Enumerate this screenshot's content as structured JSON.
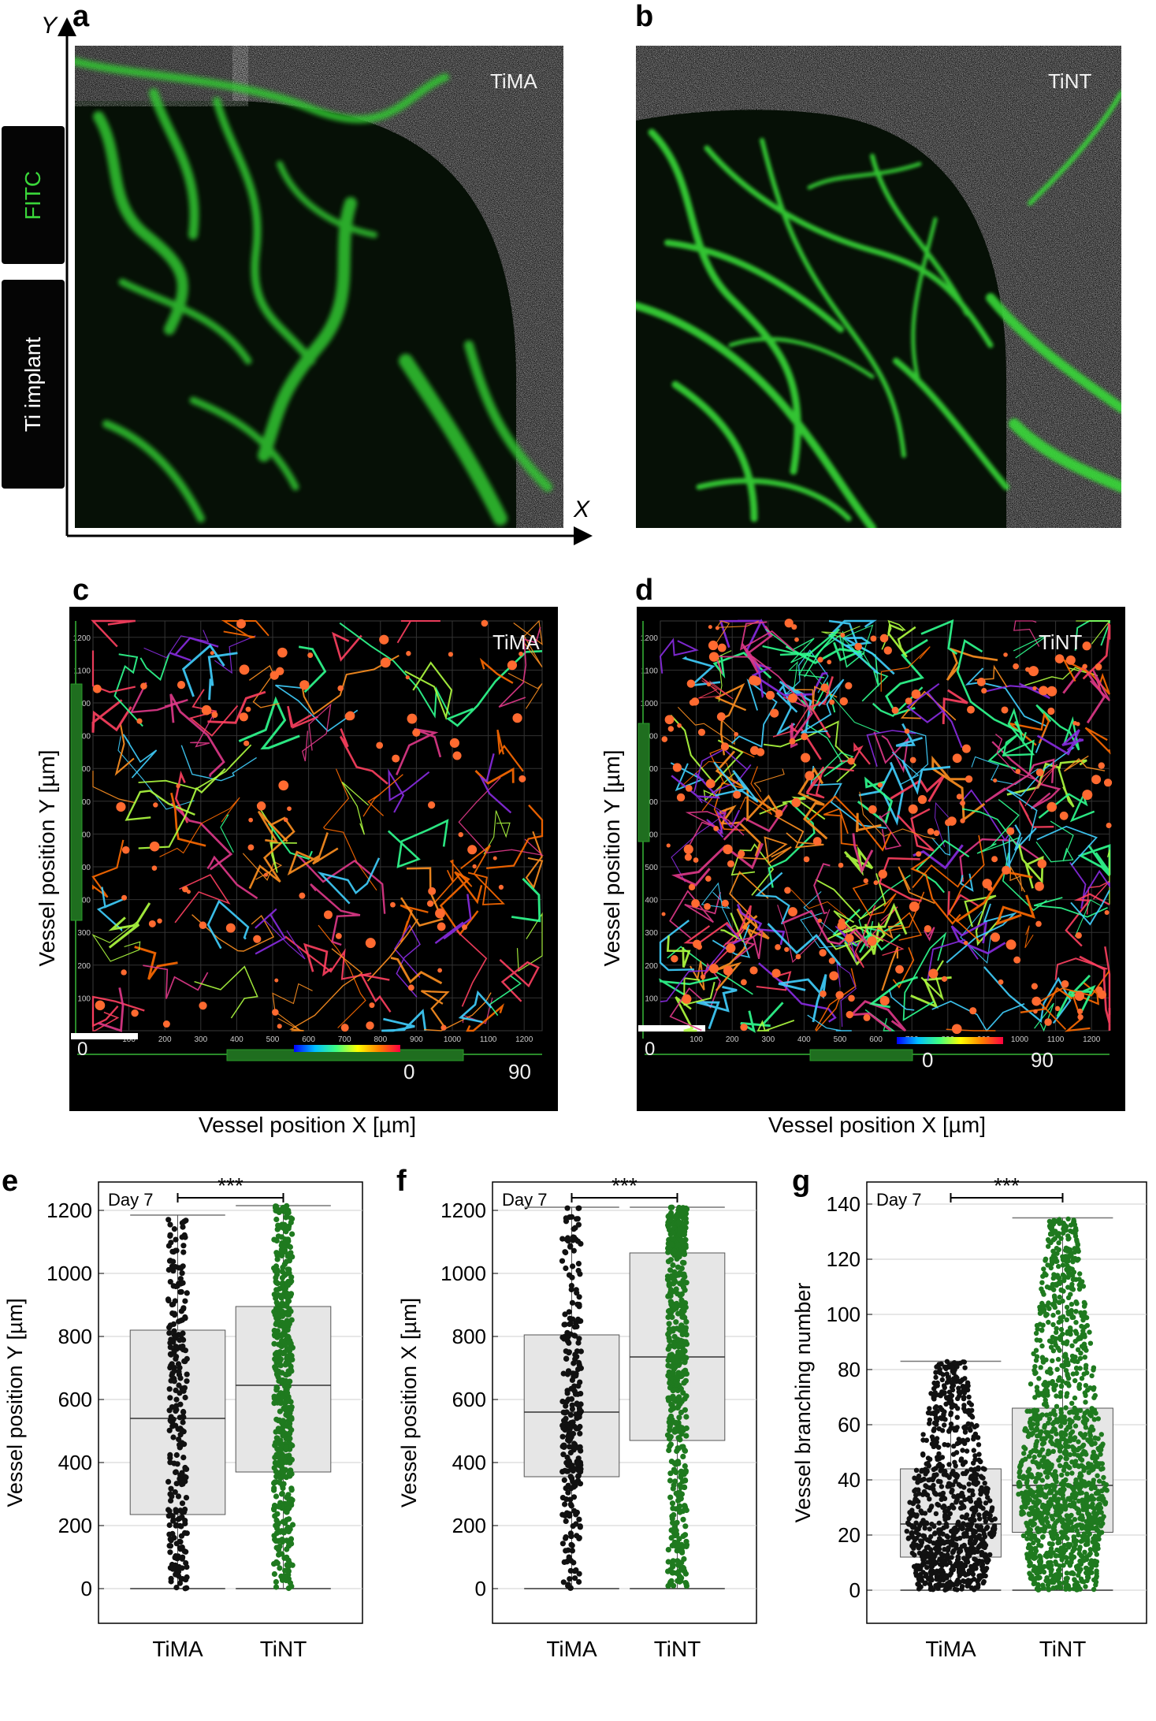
{
  "panels": {
    "a": {
      "letter": "a",
      "label": "TiMA"
    },
    "b": {
      "letter": "b",
      "label": "TiNT"
    },
    "c": {
      "letter": "c",
      "label": "TiMA"
    },
    "d": {
      "letter": "d",
      "label": "TiNT"
    },
    "e": {
      "letter": "e"
    },
    "f": {
      "letter": "f"
    },
    "g": {
      "letter": "g"
    }
  },
  "top_axes": {
    "x": "X",
    "y": "Y"
  },
  "side_labels": {
    "fitc": "FITC",
    "implant": "Ti implant"
  },
  "colors": {
    "fitc_green": "#3ad63a",
    "tint_green": "#1f7a1f",
    "tima_black": "#111111",
    "box_fill": "#e6e6e6"
  },
  "recon": {
    "ylabel": "Vessel position Y [µm]",
    "xlabel": "Vessel position X [µm]",
    "zero": "0",
    "colorbar_min": "0",
    "colorbar_max": "90",
    "ticks": [
      "100",
      "200",
      "300",
      "400",
      "500",
      "600",
      "700",
      "800",
      "900",
      "1000",
      "1100",
      "1200"
    ]
  },
  "chart_data": [
    {
      "type": "box",
      "panel": "e",
      "annotation": "Day 7",
      "significance": "***",
      "ylabel": "Vessel position Y [µm]",
      "categories": [
        "TiMA",
        "TiNT"
      ],
      "yticks": [
        0,
        200,
        400,
        600,
        800,
        1000,
        1200
      ],
      "ylim": [
        -110,
        1290
      ],
      "series": [
        {
          "name": "TiMA",
          "min": 0,
          "q1": 235,
          "median": 540,
          "q3": 820,
          "max": 1185
        },
        {
          "name": "TiNT",
          "min": 0,
          "q1": 370,
          "median": 645,
          "q3": 895,
          "max": 1215
        }
      ]
    },
    {
      "type": "box",
      "panel": "f",
      "annotation": "Day 7",
      "significance": "***",
      "ylabel": "Vessel position X [µm]",
      "categories": [
        "TiMA",
        "TiNT"
      ],
      "yticks": [
        0,
        200,
        400,
        600,
        800,
        1000,
        1200
      ],
      "ylim": [
        -110,
        1290
      ],
      "series": [
        {
          "name": "TiMA",
          "min": 0,
          "q1": 355,
          "median": 560,
          "q3": 805,
          "max": 1210
        },
        {
          "name": "TiNT",
          "min": 0,
          "q1": 470,
          "median": 735,
          "q3": 1065,
          "max": 1210
        }
      ]
    },
    {
      "type": "box",
      "panel": "g",
      "annotation": "Day 7",
      "significance": "***",
      "ylabel": "Vessel branching number",
      "categories": [
        "TiMA",
        "TiNT"
      ],
      "yticks": [
        0,
        20,
        40,
        60,
        80,
        100,
        120,
        140
      ],
      "ylim": [
        -12,
        148
      ],
      "series": [
        {
          "name": "TiMA",
          "min": 0,
          "q1": 12,
          "median": 24,
          "q3": 44,
          "max": 83
        },
        {
          "name": "TiNT",
          "min": 0,
          "q1": 21,
          "median": 38,
          "q3": 66,
          "max": 135
        }
      ]
    }
  ]
}
